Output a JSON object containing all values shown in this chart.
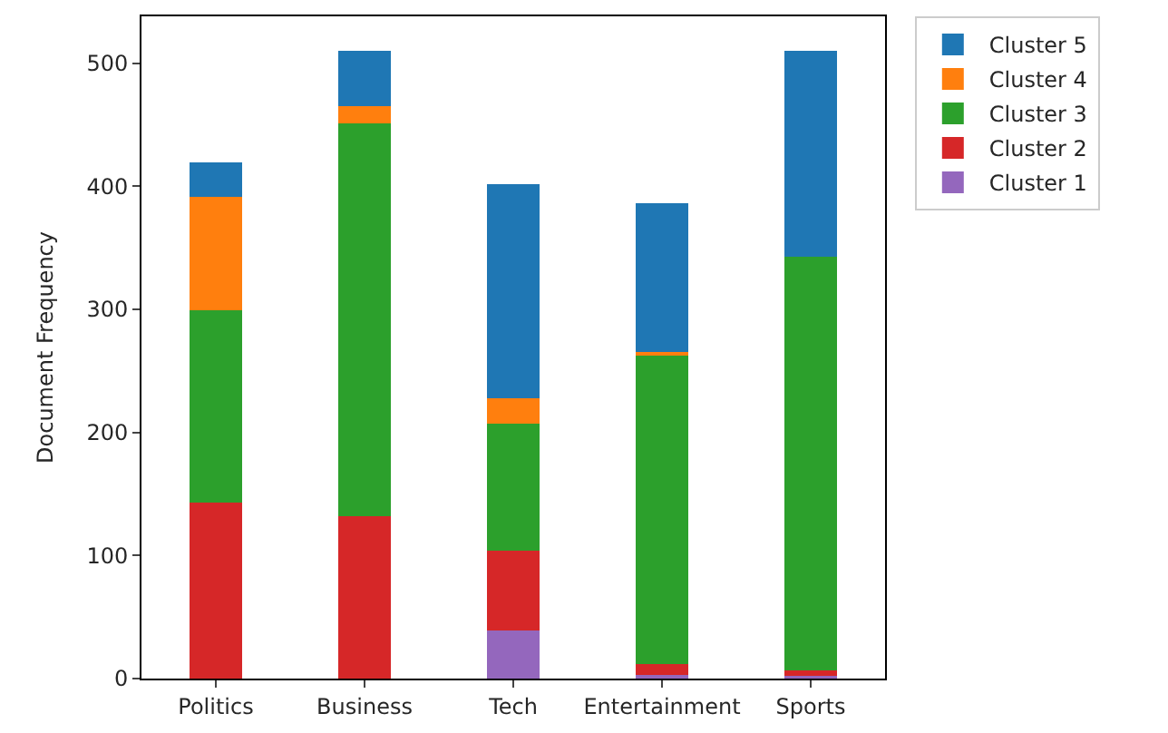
{
  "chart_data": {
    "type": "bar",
    "stacked": true,
    "ylabel": "Document Frequency",
    "categories": [
      "Politics",
      "Business",
      "Tech",
      "Entertainment",
      "Sports"
    ],
    "series": [
      {
        "name": "Cluster 1",
        "color": "#9467bd",
        "values": [
          0,
          0,
          39,
          3,
          2
        ]
      },
      {
        "name": "Cluster 2",
        "color": "#d62728",
        "values": [
          143,
          132,
          65,
          9,
          5
        ]
      },
      {
        "name": "Cluster 3",
        "color": "#2ca02c",
        "values": [
          156,
          319,
          103,
          251,
          336
        ]
      },
      {
        "name": "Cluster 4",
        "color": "#ff7f0e",
        "values": [
          92,
          14,
          21,
          2,
          0
        ]
      },
      {
        "name": "Cluster 5",
        "color": "#1f77b4",
        "values": [
          28,
          45,
          174,
          121,
          167
        ]
      }
    ],
    "ylim": [
      0,
      538
    ],
    "yticks": [
      0,
      100,
      200,
      300,
      400,
      500
    ],
    "legend": "top right"
  }
}
